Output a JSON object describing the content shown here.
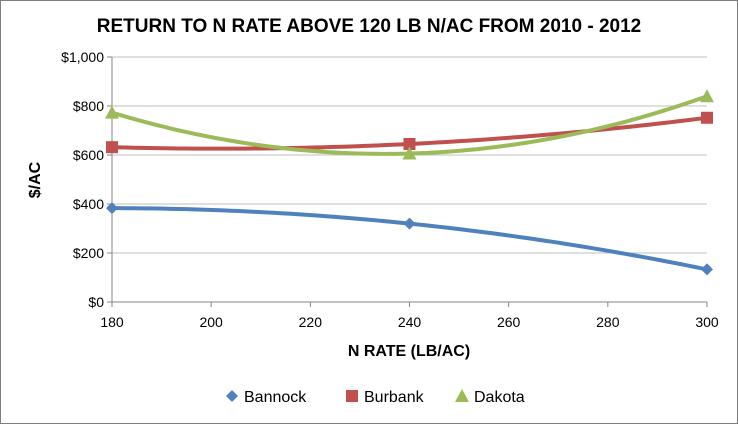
{
  "chart_data": {
    "type": "line",
    "title": "RETURN TO N RATE ABOVE 120 LB N/AC FROM 2010 - 2012",
    "xlabel": "N RATE (LB/AC)",
    "ylabel": "$/AC",
    "xlim": [
      180,
      300
    ],
    "ylim": [
      0,
      1000
    ],
    "x_ticks": [
      180,
      200,
      220,
      240,
      260,
      280,
      300
    ],
    "x_tick_labels": [
      "180",
      "200",
      "220",
      "240",
      "260",
      "280",
      "300"
    ],
    "y_ticks": [
      0,
      200,
      400,
      600,
      800,
      1000
    ],
    "y_tick_labels": [
      "$0",
      "$200",
      "$400",
      "$600",
      "$800",
      "$1,000"
    ],
    "grid": "horizontal",
    "smoothed": true,
    "legend_position": "bottom",
    "series": [
      {
        "name": "Bannock",
        "color": "#4f81bd",
        "marker": "diamond",
        "x": [
          180,
          240,
          300
        ],
        "values": [
          383,
          320,
          133
        ]
      },
      {
        "name": "Burbank",
        "color": "#c0504d",
        "marker": "square",
        "x": [
          180,
          240,
          300
        ],
        "values": [
          632,
          645,
          752
        ]
      },
      {
        "name": "Dakota",
        "color": "#9bbb59",
        "marker": "triangle",
        "x": [
          180,
          240,
          300
        ],
        "values": [
          773,
          606,
          840
        ]
      }
    ]
  }
}
